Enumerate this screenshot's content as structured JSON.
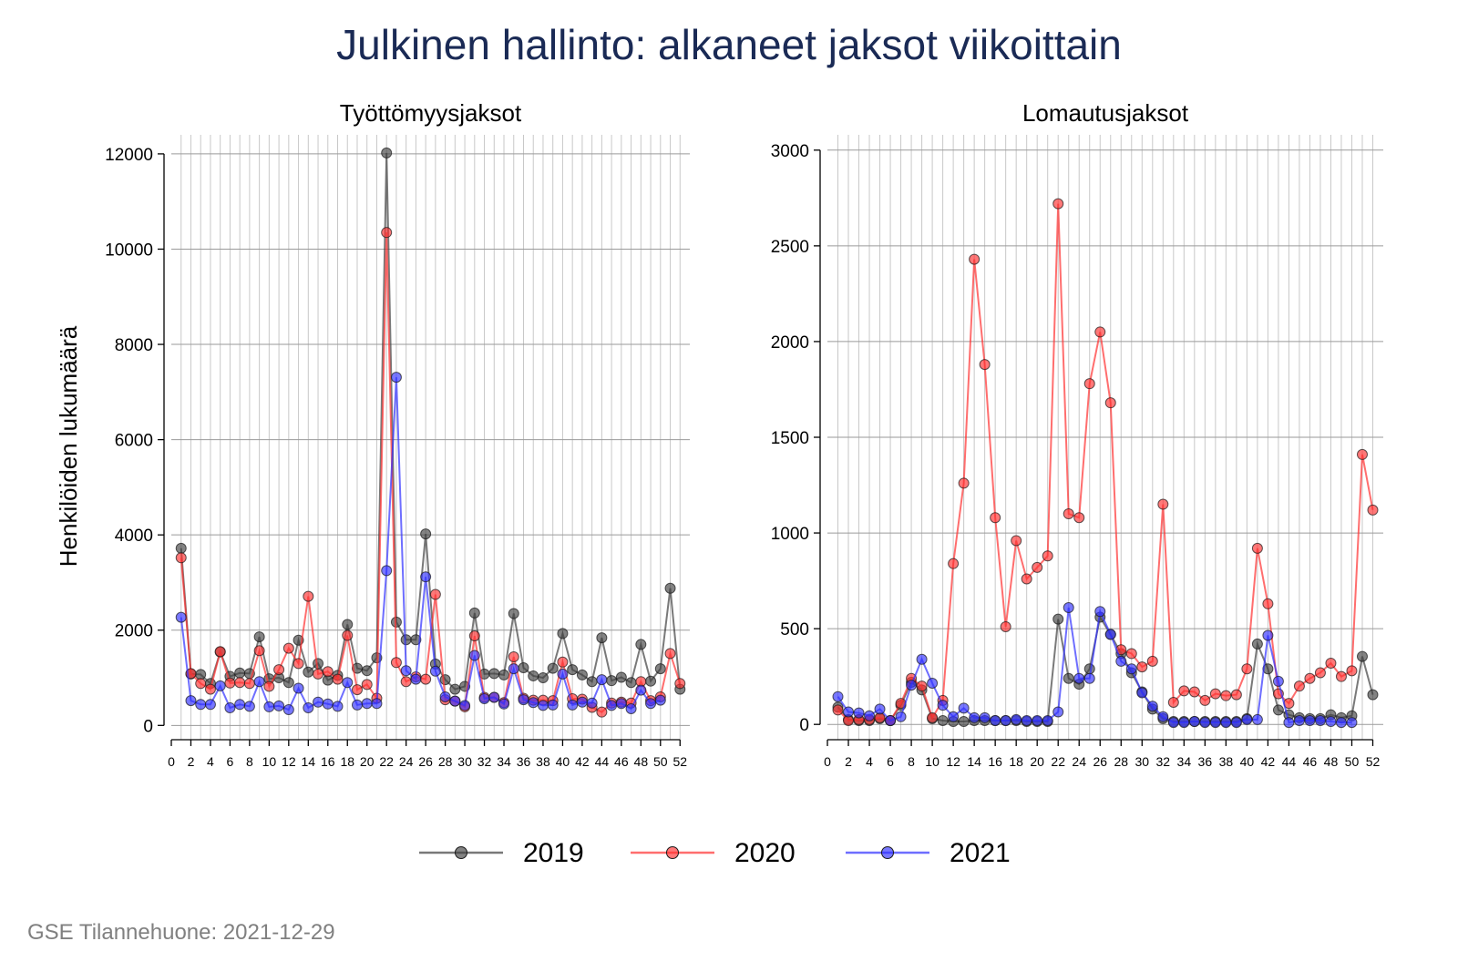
{
  "title": "Julkinen hallinto: alkaneet jaksot viikoittain",
  "source_note": "GSE Tilannehuone: 2021-12-29",
  "chart_data": [
    {
      "type": "line",
      "title": "Työttömyysjaksot",
      "ylabel": "Henkilöiden lukumäärä",
      "xlabel": "",
      "xlim": [
        0,
        53
      ],
      "ylim": [
        -300,
        12400
      ],
      "xticks": [
        0,
        2,
        4,
        6,
        8,
        10,
        12,
        14,
        16,
        18,
        20,
        22,
        24,
        26,
        28,
        30,
        32,
        34,
        36,
        38,
        40,
        42,
        44,
        46,
        48,
        50,
        52
      ],
      "yticks": [
        0,
        2000,
        4000,
        6000,
        8000,
        10000,
        12000
      ],
      "grid": true,
      "series": [
        {
          "name": "2019",
          "color": "#404040",
          "x": [
            1,
            2,
            3,
            4,
            5,
            6,
            7,
            8,
            9,
            10,
            11,
            12,
            13,
            14,
            15,
            16,
            17,
            18,
            19,
            20,
            21,
            22,
            23,
            24,
            25,
            26,
            27,
            28,
            29,
            30,
            31,
            32,
            33,
            34,
            35,
            36,
            37,
            38,
            39,
            40,
            41,
            42,
            43,
            44,
            45,
            46,
            47,
            48,
            49,
            50,
            51,
            52
          ],
          "y": [
            3720,
            1080,
            1070,
            880,
            1540,
            1030,
            1100,
            1090,
            1860,
            980,
            1000,
            900,
            1790,
            1120,
            1300,
            950,
            1050,
            2120,
            1200,
            1150,
            1420,
            12020,
            2170,
            1800,
            1800,
            4020,
            1290,
            960,
            760,
            820,
            2360,
            1080,
            1090,
            1060,
            2350,
            1210,
            1040,
            1000,
            1200,
            1930,
            1170,
            1060,
            920,
            1840,
            940,
            1010,
            900,
            1700,
            930,
            1190,
            2880,
            760
          ]
        },
        {
          "name": "2020",
          "color": "#ff3030",
          "x": [
            1,
            2,
            3,
            4,
            5,
            6,
            7,
            8,
            9,
            10,
            11,
            12,
            13,
            14,
            15,
            16,
            17,
            18,
            19,
            20,
            21,
            22,
            23,
            24,
            25,
            26,
            27,
            28,
            29,
            30,
            31,
            32,
            33,
            34,
            35,
            36,
            37,
            38,
            39,
            40,
            41,
            42,
            43,
            44,
            45,
            46,
            47,
            48,
            49,
            50,
            51,
            52
          ],
          "y": [
            3520,
            1090,
            880,
            760,
            1550,
            890,
            900,
            880,
            1570,
            820,
            1170,
            1620,
            1300,
            2710,
            1080,
            1130,
            970,
            1890,
            750,
            860,
            570,
            10350,
            1320,
            920,
            1020,
            970,
            2750,
            540,
            510,
            390,
            1880,
            590,
            590,
            480,
            1440,
            570,
            530,
            530,
            520,
            1330,
            560,
            550,
            380,
            280,
            470,
            490,
            470,
            920,
            520,
            600,
            1510,
            880
          ]
        },
        {
          "name": "2021",
          "color": "#3030ff",
          "x": [
            1,
            2,
            3,
            4,
            5,
            6,
            7,
            8,
            9,
            10,
            11,
            12,
            13,
            14,
            15,
            16,
            17,
            18,
            19,
            20,
            21,
            22,
            23,
            24,
            25,
            26,
            27,
            28,
            29,
            30,
            31,
            32,
            33,
            34,
            35,
            36,
            37,
            38,
            39,
            40,
            41,
            42,
            43,
            44,
            45,
            46,
            47,
            48,
            49,
            50
          ],
          "y": [
            2270,
            520,
            440,
            440,
            830,
            370,
            440,
            400,
            920,
            390,
            410,
            330,
            780,
            370,
            490,
            450,
            400,
            900,
            430,
            460,
            460,
            3250,
            7310,
            1150,
            970,
            3120,
            1140,
            600,
            510,
            420,
            1470,
            560,
            590,
            450,
            1190,
            540,
            480,
            420,
            430,
            1080,
            430,
            490,
            470,
            960,
            420,
            460,
            350,
            740,
            460,
            530
          ]
        }
      ]
    },
    {
      "type": "line",
      "title": "Lomautusjaksot",
      "ylabel": "",
      "xlabel": "",
      "xlim": [
        0,
        53
      ],
      "ylim": [
        -80,
        3080
      ],
      "xticks": [
        0,
        2,
        4,
        6,
        8,
        10,
        12,
        14,
        16,
        18,
        20,
        22,
        24,
        26,
        28,
        30,
        32,
        34,
        36,
        38,
        40,
        42,
        44,
        46,
        48,
        50,
        52
      ],
      "yticks": [
        0,
        500,
        1000,
        1500,
        2000,
        2500,
        3000
      ],
      "grid": true,
      "series": [
        {
          "name": "2019",
          "color": "#404040",
          "x": [
            1,
            2,
            3,
            4,
            5,
            6,
            7,
            8,
            9,
            10,
            11,
            12,
            13,
            14,
            15,
            16,
            17,
            18,
            19,
            20,
            21,
            22,
            23,
            24,
            25,
            26,
            27,
            28,
            29,
            30,
            31,
            32,
            33,
            34,
            35,
            36,
            37,
            38,
            39,
            40,
            41,
            42,
            43,
            44,
            45,
            46,
            47,
            48,
            49,
            50,
            51,
            52
          ],
          "y": [
            90,
            25,
            20,
            20,
            30,
            20,
            100,
            220,
            180,
            30,
            20,
            15,
            15,
            20,
            20,
            20,
            20,
            20,
            15,
            15,
            15,
            550,
            240,
            210,
            290,
            560,
            470,
            370,
            270,
            170,
            80,
            30,
            15,
            15,
            15,
            15,
            15,
            15,
            15,
            30,
            420,
            290,
            75,
            50,
            35,
            30,
            30,
            50,
            35,
            45,
            355,
            155
          ]
        },
        {
          "name": "2020",
          "color": "#ff3030",
          "x": [
            1,
            2,
            3,
            4,
            5,
            6,
            7,
            8,
            9,
            10,
            11,
            12,
            13,
            14,
            15,
            16,
            17,
            18,
            19,
            20,
            21,
            22,
            23,
            24,
            25,
            26,
            27,
            28,
            29,
            30,
            31,
            32,
            33,
            34,
            35,
            36,
            37,
            38,
            39,
            40,
            41,
            42,
            43,
            44,
            45,
            46,
            47,
            48,
            49,
            50,
            51,
            52
          ],
          "y": [
            75,
            20,
            25,
            25,
            35,
            20,
            110,
            240,
            200,
            35,
            125,
            840,
            1260,
            2430,
            1880,
            1080,
            510,
            960,
            760,
            820,
            880,
            2720,
            1100,
            1080,
            1780,
            2050,
            1680,
            390,
            370,
            300,
            330,
            1150,
            115,
            175,
            170,
            125,
            160,
            150,
            155,
            290,
            920,
            630,
            160,
            110,
            200,
            240,
            270,
            320,
            250,
            280,
            1410,
            1120
          ]
        },
        {
          "name": "2021",
          "color": "#3030ff",
          "x": [
            1,
            2,
            3,
            4,
            5,
            6,
            7,
            8,
            9,
            10,
            11,
            12,
            13,
            14,
            15,
            16,
            17,
            18,
            19,
            20,
            21,
            22,
            23,
            24,
            25,
            26,
            27,
            28,
            29,
            30,
            31,
            32,
            33,
            34,
            35,
            36,
            37,
            38,
            39,
            40,
            41,
            42,
            43,
            44,
            45,
            46,
            47,
            48,
            49,
            50
          ],
          "y": [
            145,
            65,
            60,
            45,
            80,
            20,
            40,
            205,
            340,
            215,
            100,
            40,
            85,
            35,
            35,
            20,
            20,
            25,
            20,
            20,
            20,
            65,
            610,
            240,
            240,
            590,
            470,
            330,
            290,
            165,
            95,
            40,
            10,
            10,
            15,
            10,
            10,
            10,
            10,
            25,
            25,
            465,
            225,
            10,
            20,
            20,
            20,
            15,
            10,
            10
          ]
        }
      ]
    }
  ]
}
